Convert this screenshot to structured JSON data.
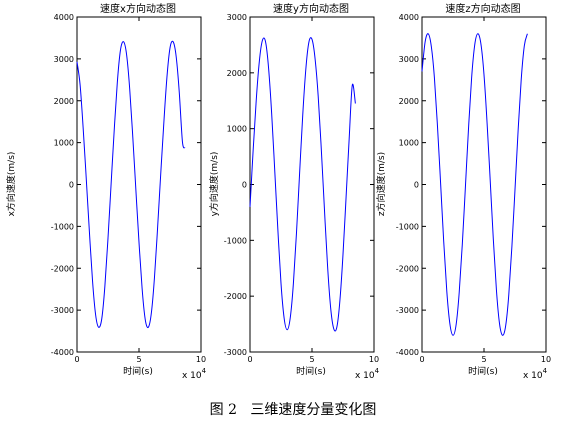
{
  "caption": "图 2   三维速度分量变化图",
  "colors": {
    "line": "#0000ff",
    "axis": "#000000"
  },
  "chart_data": [
    {
      "type": "line",
      "title": "速度x方向动态图",
      "xlabel": "时间(s)",
      "ylabel": "x方向速度(m/s)",
      "x_exponent_label": "x 10",
      "x_exponent": "4",
      "xlim": [
        0,
        10
      ],
      "ylim": [
        -4000,
        4000
      ],
      "xticks": [
        "0",
        "5",
        "10"
      ],
      "yticks": [
        "-4000",
        "-3000",
        "-2000",
        "-1000",
        "0",
        "1000",
        "2000",
        "3000",
        "4000"
      ],
      "series": [
        {
          "x": [
            0.0,
            0.25,
            0.5,
            0.75,
            1.0,
            1.25,
            1.5,
            1.75,
            2.0,
            2.25,
            2.5,
            2.75,
            3.0,
            3.25,
            3.5,
            3.75,
            4.0,
            4.25,
            4.5,
            4.75,
            5.0,
            5.25,
            5.5,
            5.75,
            6.0,
            6.25,
            6.5,
            6.75,
            7.0,
            7.25,
            7.5,
            7.75,
            8.0,
            8.25,
            8.5,
            8.7
          ],
          "values": [
            2930,
            2380,
            1330,
            120,
            -1130,
            -2290,
            -3110,
            -3410,
            -3200,
            -2420,
            -1280,
            10,
            1290,
            2430,
            3200,
            3410,
            3100,
            2280,
            1130,
            -140,
            -1380,
            -2480,
            -3220,
            -3410,
            -3060,
            -2210,
            -1030,
            240,
            1460,
            2550,
            3260,
            3410,
            3050,
            2190,
            1030,
            870
          ]
        }
      ]
    },
    {
      "type": "line",
      "title": "速度y方向动态图",
      "xlabel": "时间(s)",
      "ylabel": "y方向速度(m/s)",
      "x_exponent_label": "x 10",
      "x_exponent": "4",
      "xlim": [
        0,
        10
      ],
      "ylim": [
        -3000,
        3000
      ],
      "xticks": [
        "0",
        "5",
        "10"
      ],
      "yticks": [
        "-3000",
        "-2000",
        "-1000",
        "0",
        "1000",
        "2000",
        "3000"
      ],
      "series": [
        {
          "x": [
            0.0,
            0.25,
            0.5,
            0.75,
            1.0,
            1.25,
            1.5,
            1.75,
            2.0,
            2.25,
            2.5,
            2.75,
            3.0,
            3.25,
            3.5,
            3.75,
            4.0,
            4.25,
            4.5,
            4.75,
            5.0,
            5.25,
            5.5,
            5.75,
            6.0,
            6.25,
            6.5,
            6.75,
            7.0,
            7.25,
            7.5,
            7.75,
            8.0,
            8.25,
            8.5
          ],
          "values": [
            -400,
            600,
            1500,
            2200,
            2580,
            2560,
            2080,
            1260,
            230,
            -820,
            -1770,
            -2390,
            -2600,
            -2380,
            -1770,
            -860,
            200,
            1230,
            2060,
            2550,
            2600,
            2250,
            1580,
            630,
            -430,
            -1440,
            -2200,
            -2580,
            -2560,
            -2080,
            -1250,
            -220,
            830,
            1780,
            1450
          ]
        }
      ]
    },
    {
      "type": "line",
      "title": "速度z方向动态图",
      "xlabel": "时间(s)",
      "ylabel": "z方向速度(m/s)",
      "x_exponent_label": "x 10",
      "x_exponent": "4",
      "xlim": [
        0,
        10
      ],
      "ylim": [
        -4000,
        4000
      ],
      "xticks": [
        "0",
        "5",
        "10"
      ],
      "yticks": [
        "-4000",
        "-3000",
        "-2000",
        "-1000",
        "0",
        "1000",
        "2000",
        "3000",
        "4000"
      ],
      "series": [
        {
          "x": [
            0.0,
            0.25,
            0.5,
            0.75,
            1.0,
            1.25,
            1.5,
            1.75,
            2.0,
            2.25,
            2.5,
            2.75,
            3.0,
            3.25,
            3.5,
            3.75,
            4.0,
            4.25,
            4.5,
            4.75,
            5.0,
            5.25,
            5.5,
            5.75,
            6.0,
            6.25,
            6.5,
            6.75,
            7.0,
            7.25,
            7.5,
            7.75,
            8.0,
            8.25,
            8.5
          ],
          "values": [
            2700,
            3400,
            3600,
            3300,
            2550,
            1380,
            30,
            -1360,
            -2550,
            -3330,
            -3600,
            -3350,
            -2580,
            -1430,
            -60,
            1330,
            2540,
            3330,
            3600,
            3360,
            2620,
            1460,
            100,
            -1300,
            -2510,
            -3320,
            -3600,
            -3370,
            -2630,
            -1480,
            -120,
            1280,
            2500,
            3310,
            3600
          ]
        }
      ]
    }
  ]
}
